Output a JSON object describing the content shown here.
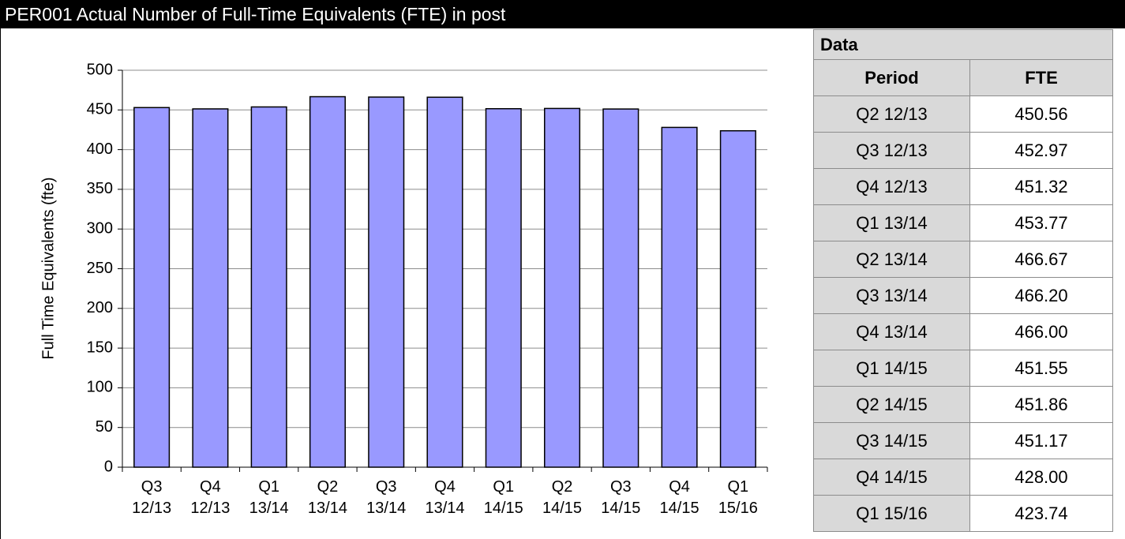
{
  "header": {
    "title": "PER001 Actual Number of Full-Time Equivalents (FTE) in post"
  },
  "chart_data": {
    "type": "bar",
    "y_label": "Full Time Equivalents  (fte)",
    "categories": [
      "Q3 12/13",
      "Q4 12/13",
      "Q1 13/14",
      "Q2 13/14",
      "Q3 13/14",
      "Q4 13/14",
      "Q1 14/15",
      "Q2 14/15",
      "Q3 14/15",
      "Q4 14/15",
      "Q1 15/16"
    ],
    "values": [
      452.97,
      451.32,
      453.77,
      466.67,
      466.2,
      466.0,
      451.55,
      451.86,
      451.17,
      428.0,
      423.74
    ],
    "color": "#9999ff",
    "ylim": [
      0,
      500
    ],
    "yticks": [
      0,
      50,
      100,
      150,
      200,
      250,
      300,
      350,
      400,
      450,
      500
    ],
    "grid": true
  },
  "table": {
    "title": "Data",
    "columns": [
      "Period",
      "FTE"
    ],
    "rows": [
      [
        "Q2 12/13",
        "450.56"
      ],
      [
        "Q3 12/13",
        "452.97"
      ],
      [
        "Q4 12/13",
        "451.32"
      ],
      [
        "Q1 13/14",
        "453.77"
      ],
      [
        "Q2 13/14",
        "466.67"
      ],
      [
        "Q3 13/14",
        "466.20"
      ],
      [
        "Q4 13/14",
        "466.00"
      ],
      [
        "Q1 14/15",
        "451.55"
      ],
      [
        "Q2 14/15",
        "451.86"
      ],
      [
        "Q3 14/15",
        "451.17"
      ],
      [
        "Q4 14/15",
        "428.00"
      ],
      [
        "Q1 15/16",
        "423.74"
      ]
    ]
  }
}
